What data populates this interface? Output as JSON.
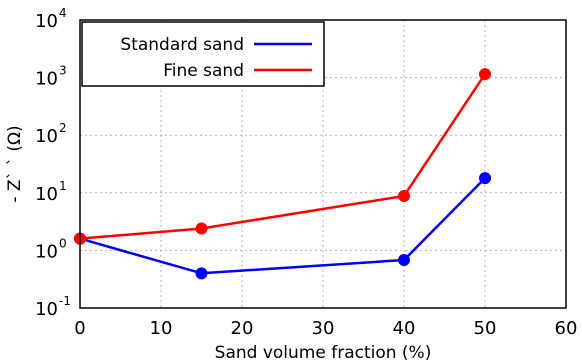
{
  "chart_data": {
    "type": "line",
    "title": "",
    "xlabel": "Sand volume fraction (%)",
    "ylabel": "- Z` ` (Ω)",
    "xlim": [
      0,
      60
    ],
    "ylim": [
      0.1,
      10000
    ],
    "y_scale": "log",
    "grid": true,
    "legend_position": "top-left",
    "x_ticks": [
      "0",
      "10",
      "20",
      "30",
      "40",
      "50",
      "60"
    ],
    "y_ticks": [
      {
        "base": "10",
        "exp": "-1"
      },
      {
        "base": "10",
        "exp": "0"
      },
      {
        "base": "10",
        "exp": "1"
      },
      {
        "base": "10",
        "exp": "2"
      },
      {
        "base": "10",
        "exp": "3"
      },
      {
        "base": "10",
        "exp": "4"
      }
    ],
    "series": [
      {
        "name": "Standard sand",
        "color": "#0000ff",
        "x": [
          0,
          15,
          40,
          50
        ],
        "y": [
          1.6,
          0.4,
          0.68,
          18
        ]
      },
      {
        "name": "Fine sand",
        "color": "#ff0000",
        "x": [
          0,
          15,
          40,
          50
        ],
        "y": [
          1.6,
          2.4,
          8.8,
          1150
        ]
      }
    ]
  }
}
